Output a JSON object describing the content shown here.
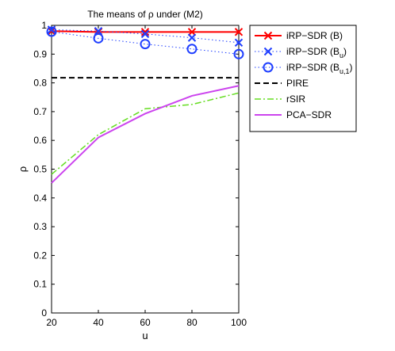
{
  "chart_data": {
    "type": "line",
    "title": "The means of ρ under (M2)",
    "xlabel": "u",
    "ylabel": "ρ",
    "xlim": [
      20,
      100
    ],
    "ylim": [
      0,
      1
    ],
    "x": [
      20,
      40,
      60,
      80,
      100
    ],
    "xticks": [
      "20",
      "40",
      "60",
      "80",
      "100"
    ],
    "yticks": [
      "0",
      "0.1",
      "0.2",
      "0.3",
      "0.4",
      "0.5",
      "0.6",
      "0.7",
      "0.8",
      "0.9",
      "1"
    ],
    "grid": false,
    "legend_position": "outside-right-top",
    "series": [
      {
        "name": "iRP−SDR (B)",
        "name_main": "iRP−SDR (B)",
        "name_sub": "",
        "name_tail": "",
        "values": [
          0.98,
          0.977,
          0.977,
          0.977,
          0.977
        ],
        "color": "#ff0000",
        "dash": "solid",
        "marker": "x",
        "width": 2
      },
      {
        "name": "iRP−SDR (B_u)",
        "name_main": "iRP−SDR (B",
        "name_sub": "u",
        "name_tail": ")",
        "values": [
          0.985,
          0.98,
          0.97,
          0.957,
          0.94
        ],
        "color": "#1f3fff",
        "dash": "dot",
        "marker": "x",
        "width": 1
      },
      {
        "name": "iRP−SDR (B_u,1)",
        "name_main": "iRP−SDR (B",
        "name_sub": "u,1",
        "name_tail": ")",
        "values": [
          0.978,
          0.955,
          0.935,
          0.918,
          0.9
        ],
        "color": "#1f3fff",
        "dash": "dot",
        "marker": "o",
        "width": 1
      },
      {
        "name": "PIRE",
        "name_main": "PIRE",
        "name_sub": "",
        "name_tail": "",
        "values": [
          0.818,
          0.818,
          0.818,
          0.818,
          0.818
        ],
        "color": "#000000",
        "dash": "dash",
        "marker": "none",
        "width": 2
      },
      {
        "name": "rSIR",
        "name_main": "rSIR",
        "name_sub": "",
        "name_tail": "",
        "values": [
          0.482,
          0.62,
          0.71,
          0.725,
          0.765
        ],
        "color": "#66dd22",
        "dash": "dashdot",
        "marker": "none",
        "width": 1.5
      },
      {
        "name": "PCA−SDR",
        "name_main": "PCA−SDR",
        "name_sub": "",
        "name_tail": "",
        "values": [
          0.452,
          0.61,
          0.693,
          0.755,
          0.79
        ],
        "color": "#cc44ee",
        "dash": "solid",
        "marker": "none",
        "width": 2
      }
    ]
  }
}
